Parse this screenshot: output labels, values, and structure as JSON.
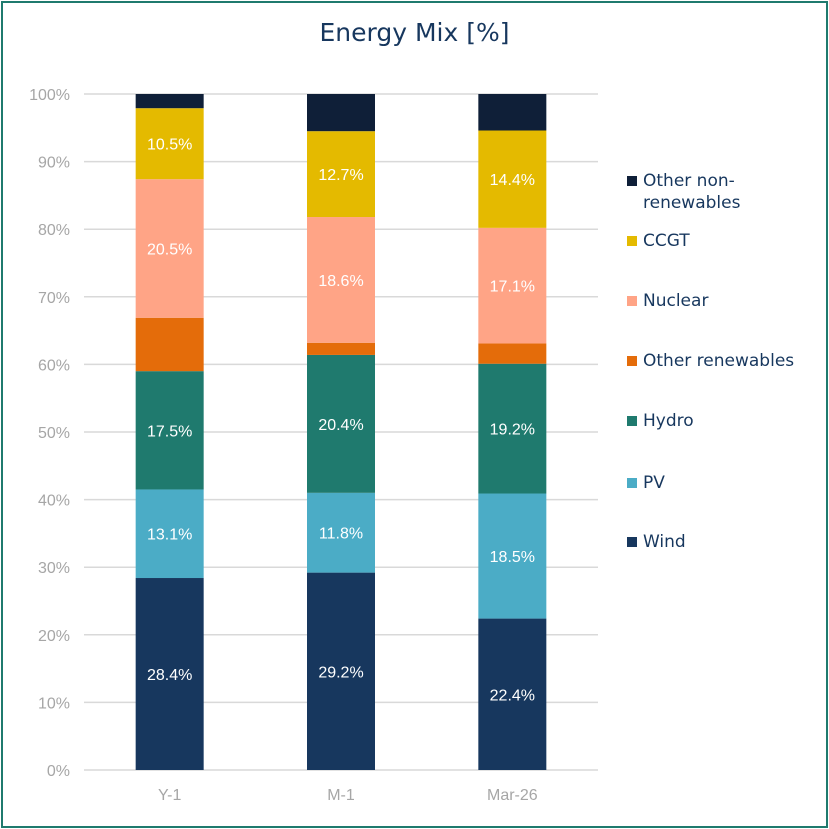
{
  "chart_data": {
    "type": "bar",
    "stacked": true,
    "title": "Energy Mix [%]",
    "categories": [
      "Y-1",
      "M-1",
      "Mar-26"
    ],
    "ylim": [
      0,
      100
    ],
    "yticks": [
      "0%",
      "10%",
      "20%",
      "30%",
      "40%",
      "50%",
      "60%",
      "70%",
      "80%",
      "90%",
      "100%"
    ],
    "grid": true,
    "legend_position": "right",
    "series": [
      {
        "name": "Wind",
        "color": "#17375E",
        "values": [
          28.4,
          29.2,
          22.4
        ],
        "labels": [
          "28.4%",
          "29.2%",
          "22.4%"
        ]
      },
      {
        "name": "PV",
        "color": "#4BACC6",
        "values": [
          13.1,
          11.8,
          18.5
        ],
        "labels": [
          "13.1%",
          "11.8%",
          "18.5%"
        ]
      },
      {
        "name": "Hydro",
        "color": "#1F7A6E",
        "values": [
          17.5,
          20.4,
          19.2
        ],
        "labels": [
          "17.5%",
          "20.4%",
          "19.2%"
        ]
      },
      {
        "name": "Other renewables",
        "color": "#E46C0A",
        "values": [
          7.9,
          1.8,
          3.0
        ],
        "labels": [
          null,
          null,
          null
        ]
      },
      {
        "name": "Nuclear",
        "color": "#FFA486",
        "values": [
          20.5,
          18.6,
          17.1
        ],
        "labels": [
          "20.5%",
          "18.6%",
          "17.1%"
        ]
      },
      {
        "name": "CCGT",
        "color": "#E4BA00",
        "values": [
          10.5,
          12.7,
          14.4
        ],
        "labels": [
          "10.5%",
          "12.7%",
          "14.4%"
        ]
      },
      {
        "name": "Other non-renewables",
        "color": "#0F1F38",
        "values": [
          2.1,
          5.5,
          5.4
        ],
        "labels": [
          null,
          null,
          null
        ]
      }
    ]
  },
  "colors": {
    "border": "#1F7A6E",
    "grid": "#D9D9D9",
    "tick_text": "#A6A6A6",
    "title_text": "#17375E"
  }
}
